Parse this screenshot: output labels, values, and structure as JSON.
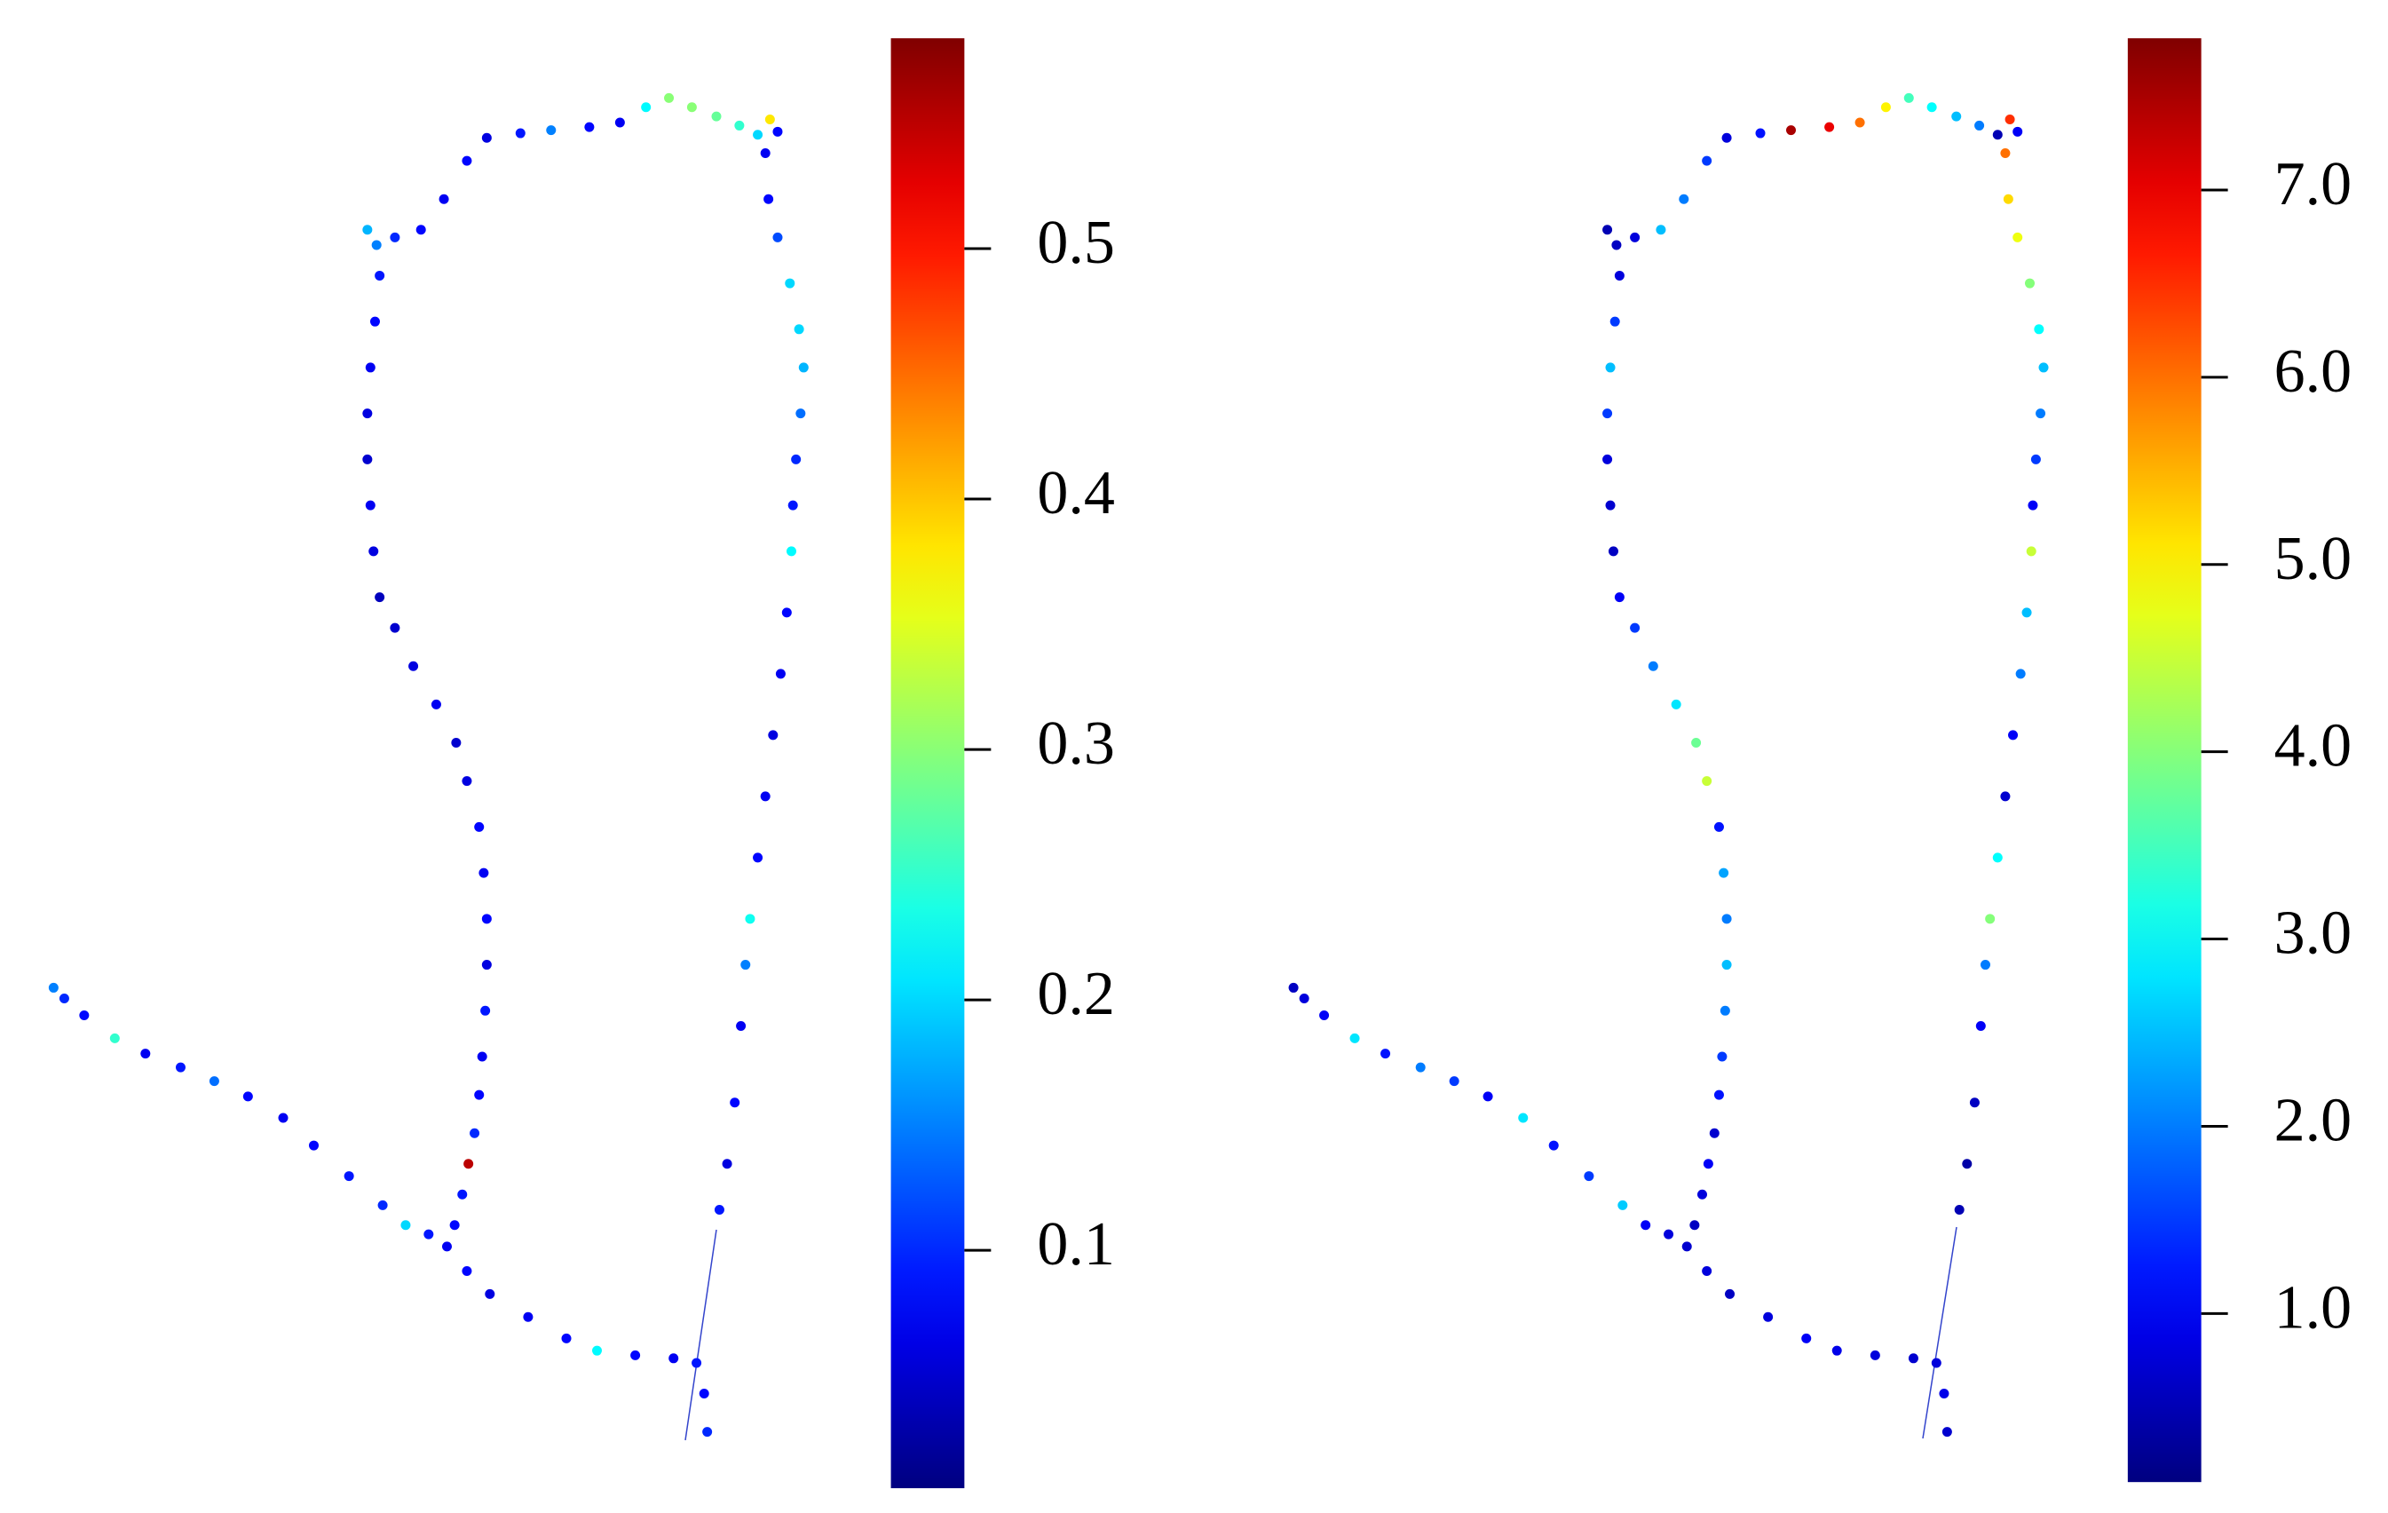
{
  "chart_data": [
    {
      "type": "scatter",
      "colormap": "jet",
      "x": [
        35,
        42,
        55,
        75,
        95,
        118,
        140,
        162,
        185,
        205,
        228,
        250,
        265,
        280,
        292,
        305,
        320,
        345,
        370,
        390,
        415,
        440,
        455,
        460,
        462,
        297,
        302,
        306,
        310,
        313,
        315,
        317,
        318,
        318,
        316,
        313,
        305,
        298,
        285,
        270,
        258,
        248,
        244,
        242,
        240,
        240,
        242,
        245,
        248,
        246,
        240,
        258,
        275,
        290,
        305,
        318,
        340,
        360,
        385,
        405,
        422,
        437,
        452,
        468,
        483,
        495,
        508,
        503,
        500,
        502,
        508,
        516,
        522,
        525,
        523,
        520,
        518,
        517,
        514,
        510,
        505,
        500,
        495,
        490,
        487,
        484,
        480,
        475,
        470
      ],
      "y": [
        645,
        652,
        663,
        678,
        688,
        697,
        706,
        716,
        730,
        748,
        768,
        787,
        800,
        806,
        814,
        830,
        845,
        860,
        874,
        882,
        885,
        887,
        890,
        910,
        935,
        800,
        780,
        760,
        740,
        715,
        690,
        660,
        630,
        600,
        570,
        540,
        510,
        485,
        460,
        435,
        410,
        390,
        360,
        330,
        300,
        270,
        240,
        210,
        180,
        160,
        150,
        155,
        150,
        130,
        105,
        90,
        87,
        85,
        83,
        80,
        70,
        64,
        70,
        76,
        82,
        88,
        86,
        78,
        100,
        130,
        155,
        185,
        215,
        240,
        270,
        300,
        330,
        360,
        400,
        440,
        480,
        520,
        560,
        600,
        630,
        670,
        720,
        760,
        790
      ],
      "values": [
        0.15,
        0.1,
        0.08,
        0.25,
        0.07,
        0.09,
        0.14,
        0.08,
        0.07,
        0.08,
        0.09,
        0.1,
        0.2,
        0.09,
        0.07,
        0.08,
        0.06,
        0.07,
        0.08,
        0.22,
        0.08,
        0.07,
        0.09,
        0.08,
        0.1,
        0.08,
        0.09,
        0.55,
        0.1,
        0.08,
        0.07,
        0.09,
        0.06,
        0.08,
        0.07,
        0.08,
        0.06,
        0.05,
        0.07,
        0.06,
        0.05,
        0.04,
        0.06,
        0.07,
        0.05,
        0.06,
        0.07,
        0.08,
        0.09,
        0.15,
        0.18,
        0.1,
        0.08,
        0.07,
        0.08,
        0.06,
        0.09,
        0.15,
        0.08,
        0.07,
        0.22,
        0.3,
        0.3,
        0.28,
        0.25,
        0.2,
        0.08,
        0.38,
        0.07,
        0.08,
        0.12,
        0.2,
        0.2,
        0.18,
        0.14,
        0.1,
        0.09,
        0.22,
        0.08,
        0.07,
        0.06,
        0.07,
        0.08,
        0.23,
        0.15,
        0.07,
        0.08,
        0.06,
        0.09
      ],
      "xlim": [
        0,
        560
      ],
      "ylim": [
        988,
        0
      ],
      "clim": [
        0.005,
        0.584
      ],
      "cticks": [
        0.1,
        0.2,
        0.3,
        0.4,
        0.5
      ]
    },
    {
      "type": "scatter",
      "colormap": "jet",
      "x": [
        35,
        42,
        55,
        75,
        95,
        118,
        140,
        162,
        185,
        205,
        228,
        250,
        265,
        280,
        292,
        305,
        320,
        345,
        370,
        390,
        415,
        440,
        455,
        460,
        462,
        297,
        302,
        306,
        310,
        313,
        315,
        317,
        318,
        318,
        316,
        313,
        305,
        298,
        285,
        270,
        258,
        248,
        244,
        242,
        240,
        240,
        242,
        245,
        248,
        246,
        240,
        258,
        275,
        290,
        305,
        318,
        340,
        360,
        385,
        405,
        422,
        437,
        452,
        468,
        483,
        495,
        508,
        503,
        500,
        502,
        508,
        516,
        522,
        525,
        523,
        520,
        518,
        517,
        514,
        510,
        505,
        500,
        495,
        490,
        487,
        484,
        480,
        475,
        470
      ],
      "y": [
        645,
        652,
        663,
        678,
        688,
        697,
        706,
        716,
        730,
        748,
        768,
        787,
        800,
        806,
        814,
        830,
        845,
        860,
        874,
        882,
        885,
        887,
        890,
        910,
        935,
        800,
        780,
        760,
        740,
        715,
        690,
        660,
        630,
        600,
        570,
        540,
        510,
        485,
        460,
        435,
        410,
        390,
        360,
        330,
        300,
        270,
        240,
        210,
        180,
        160,
        150,
        155,
        150,
        130,
        105,
        90,
        87,
        85,
        83,
        80,
        70,
        64,
        70,
        76,
        82,
        88,
        86,
        78,
        100,
        130,
        155,
        185,
        215,
        240,
        270,
        300,
        330,
        360,
        400,
        440,
        480,
        520,
        560,
        600,
        630,
        670,
        720,
        760,
        790
      ],
      "values": [
        0.6,
        0.8,
        1.0,
        2.8,
        1.2,
        2.0,
        1.5,
        1.0,
        2.8,
        1.2,
        1.5,
        2.6,
        1.0,
        0.8,
        0.7,
        0.8,
        0.6,
        0.8,
        1.0,
        0.9,
        0.8,
        0.7,
        0.8,
        0.9,
        0.7,
        0.6,
        0.8,
        1.0,
        0.7,
        1.2,
        1.5,
        2.0,
        2.5,
        2.0,
        2.3,
        1.2,
        4.5,
        3.8,
        2.8,
        2.0,
        1.5,
        1.0,
        0.6,
        0.7,
        0.8,
        1.5,
        2.5,
        1.5,
        0.8,
        0.6,
        0.5,
        0.8,
        2.5,
        2.0,
        1.5,
        0.8,
        1.2,
        7.5,
        7.0,
        6.0,
        5.0,
        3.5,
        3.0,
        2.5,
        2.0,
        0.5,
        1.0,
        6.5,
        6.0,
        5.2,
        4.8,
        4.0,
        3.0,
        2.5,
        2.0,
        1.5,
        1.0,
        4.5,
        2.5,
        2.0,
        1.0,
        0.7,
        3.0,
        4.0,
        2.0,
        1.0,
        0.6,
        0.4,
        0.5
      ],
      "xlim": [
        0,
        560
      ],
      "ylim": [
        988,
        0
      ],
      "clim": [
        0.1,
        7.81
      ],
      "cticks": [
        {
          "value": 1,
          "label": "1.0"
        },
        {
          "value": 2,
          "label": "2.0"
        },
        {
          "value": 3,
          "label": "3.0"
        },
        {
          "value": 4,
          "label": "4.0"
        },
        {
          "value": 5,
          "label": "5.0"
        },
        {
          "value": 6,
          "label": "6.0"
        },
        {
          "value": 7,
          "label": "7.0"
        }
      ]
    }
  ]
}
